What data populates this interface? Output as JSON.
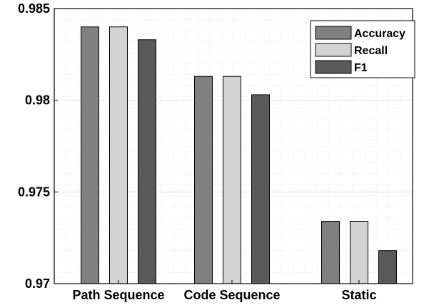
{
  "chart_data": {
    "type": "bar",
    "categories": [
      "Path Sequence",
      "Code Sequence",
      "Static"
    ],
    "series": [
      {
        "name": "Accuracy",
        "values": [
          0.984,
          0.9813,
          0.9734
        ],
        "color": "#808080"
      },
      {
        "name": "Recall",
        "values": [
          0.984,
          0.9813,
          0.9734
        ],
        "color": "#d3d3d3"
      },
      {
        "name": "F1",
        "values": [
          0.9833,
          0.9803,
          0.9718
        ],
        "color": "#5a5a5a"
      }
    ],
    "ylim": [
      0.97,
      0.985
    ],
    "yticks": [
      "0.97",
      "0.975",
      "0.98",
      "0.985"
    ],
    "ytick_values": [
      0.97,
      0.975,
      0.98,
      0.985
    ],
    "title": "",
    "xlabel": "",
    "ylabel": "",
    "grid": true,
    "minor_grid": true,
    "legend_position": "top-right"
  }
}
